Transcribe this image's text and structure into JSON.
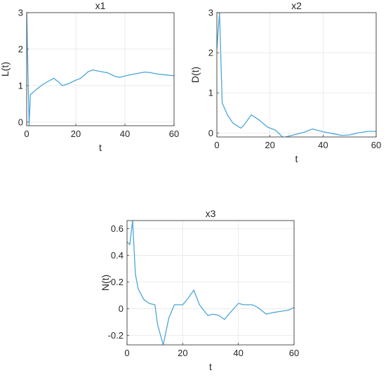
{
  "chart_data": [
    {
      "type": "line",
      "title": "x1",
      "xlabel": "t",
      "ylabel": "L(t)",
      "xlim": [
        0,
        60
      ],
      "ylim": [
        -0.1,
        3
      ],
      "xticks": [
        "0",
        "20",
        "40",
        "60"
      ],
      "yticks": [
        "0",
        "1",
        "2",
        "3"
      ],
      "grid": true,
      "color": "#4da6d8",
      "series": [
        {
          "x": [
            0,
            1,
            1.5,
            4,
            7,
            11,
            13,
            14.5,
            17,
            20,
            22,
            25,
            27,
            29,
            33,
            36,
            38,
            41,
            44,
            48,
            50,
            53,
            57,
            60
          ],
          "y": [
            3.0,
            -0.1,
            0.75,
            0.9,
            1.05,
            1.2,
            1.1,
            1.0,
            1.05,
            1.15,
            1.2,
            1.38,
            1.43,
            1.4,
            1.35,
            1.25,
            1.23,
            1.28,
            1.32,
            1.37,
            1.36,
            1.32,
            1.29,
            1.27
          ]
        }
      ]
    },
    {
      "type": "line",
      "title": "x2",
      "xlabel": "t",
      "ylabel": "D(t)",
      "xlim": [
        0,
        60
      ],
      "ylim": [
        -0.1,
        3
      ],
      "xticks": [
        "0",
        "20",
        "40",
        "60"
      ],
      "yticks": [
        "0",
        "1",
        "2",
        "3"
      ],
      "grid": true,
      "color": "#4da6d8",
      "series": [
        {
          "x": [
            0,
            1,
            2,
            4,
            6,
            9,
            10,
            13,
            16,
            19,
            22,
            24,
            25,
            27,
            30,
            33,
            36,
            40,
            44,
            47,
            50,
            53,
            57,
            60
          ],
          "y": [
            2.1,
            3.0,
            0.75,
            0.45,
            0.25,
            0.12,
            0.18,
            0.45,
            0.32,
            0.15,
            0.07,
            -0.05,
            -0.12,
            -0.08,
            -0.03,
            0.02,
            0.1,
            0.03,
            -0.02,
            -0.06,
            -0.05,
            0.0,
            0.04,
            0.04
          ]
        }
      ]
    },
    {
      "type": "line",
      "title": "x3",
      "xlabel": "t",
      "ylabel": "N(t)",
      "xlim": [
        0,
        60
      ],
      "ylim": [
        -0.27,
        0.66
      ],
      "xticks": [
        "0",
        "20",
        "40",
        "60"
      ],
      "yticks": [
        "-0.2",
        "0",
        "0.2",
        "0.4",
        "0.6"
      ],
      "grid": true,
      "color": "#4da6d8",
      "series": [
        {
          "x": [
            0,
            1,
            2,
            3,
            4,
            6,
            8,
            10,
            11,
            13,
            15,
            17,
            20,
            22,
            24,
            26,
            29,
            31,
            33,
            35,
            37,
            40,
            42,
            45,
            47,
            50,
            52,
            55,
            58,
            60
          ],
          "y": [
            0.5,
            0.48,
            0.66,
            0.26,
            0.15,
            0.07,
            0.04,
            0.03,
            -0.12,
            -0.27,
            -0.07,
            0.03,
            0.03,
            0.08,
            0.14,
            0.03,
            -0.05,
            -0.04,
            -0.05,
            -0.08,
            -0.03,
            0.04,
            0.03,
            0.03,
            0.01,
            -0.04,
            -0.03,
            -0.02,
            -0.01,
            0.01
          ]
        }
      ]
    }
  ]
}
